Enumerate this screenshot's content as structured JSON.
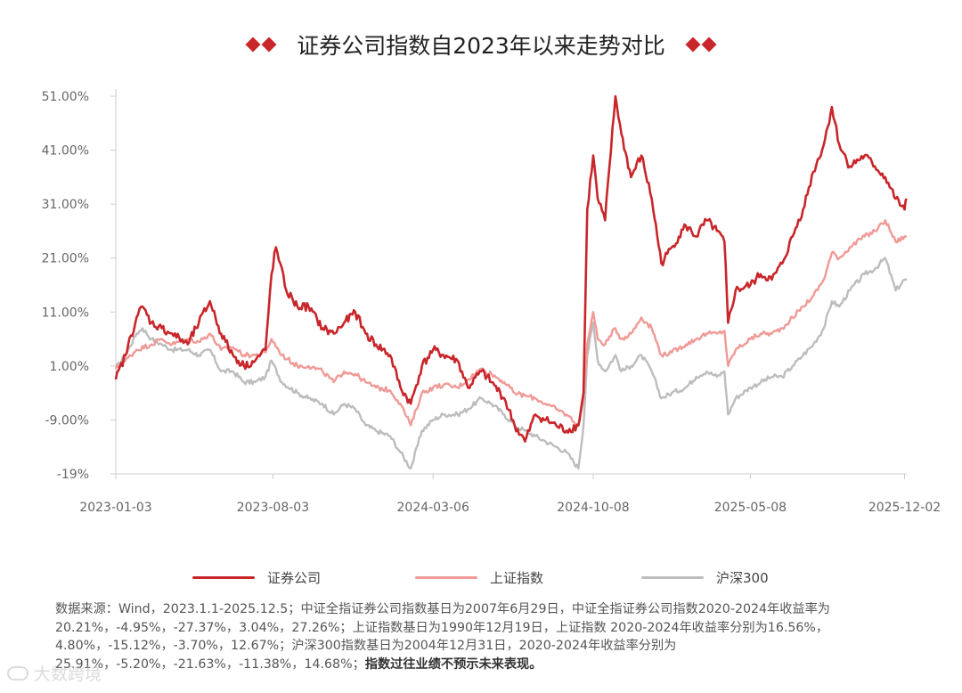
{
  "title": "证券公司指数自2023年以来走势对比",
  "colors": {
    "brokerage": "#c8262a",
    "shanghai": "#ef9a96",
    "csi300": "#bdbdbd",
    "diamond": "#c8262a"
  },
  "legend": {
    "brokerage": "证券公司",
    "shanghai": "上证指数",
    "csi300": "沪深300"
  },
  "note": {
    "text": "数据来源：Wind，2023.1.1-2025.12.5；中证全指证券公司指数基日为2007年6月29日，中证全指证券公司指数2020-2024年收益率为20.21%，-4.95%，-27.37%，3.04%，27.26%；上证指数基日为1990年12月19日，上证指数 2020-2024年收益率分别为16.56%，4.80%，-15.12%，-3.70%，12.67%；沪深300指数基日为2004年12月31日，2020-2024年收益率分别为25.91%，-5.20%，-21.63%，-11.38%，14.68%；",
    "bold": "指数过往业绩不预示未来表现。"
  },
  "watermark": "大数跨境",
  "chart_data": {
    "type": "line",
    "title": "证券公司指数自2023年以来走势对比",
    "xlabel": "",
    "ylabel": "",
    "x_ticks": [
      "2023-01-03",
      "2023-08-03",
      "2024-03-06",
      "2024-10-08",
      "2025-05-08",
      "2025-12-02"
    ],
    "y_ticks": [
      "51.00%",
      "41.00%",
      "31.00%",
      "21.00%",
      "11.00%",
      "1.00%",
      "-9.00%",
      "-19%"
    ],
    "ylim": [
      -19,
      51
    ],
    "xlim": [
      "2023-01-03",
      "2025-12-05"
    ],
    "grid": false,
    "legend_position": "bottom",
    "series": [
      {
        "key": "brokerage",
        "name": "证券公司",
        "points": [
          [
            "2023-01-03",
            -1.5
          ],
          [
            "2023-01-16",
            3
          ],
          [
            "2023-01-31",
            10
          ],
          [
            "2023-02-08",
            12
          ],
          [
            "2023-02-20",
            9
          ],
          [
            "2023-03-06",
            8
          ],
          [
            "2023-03-20",
            7
          ],
          [
            "2023-04-10",
            5
          ],
          [
            "2023-04-25",
            9
          ],
          [
            "2023-05-10",
            13
          ],
          [
            "2023-05-25",
            7
          ],
          [
            "2023-06-10",
            3
          ],
          [
            "2023-06-25",
            1
          ],
          [
            "2023-07-10",
            2
          ],
          [
            "2023-07-24",
            4
          ],
          [
            "2023-08-01",
            18
          ],
          [
            "2023-08-07",
            23
          ],
          [
            "2023-08-21",
            15
          ],
          [
            "2023-09-05",
            12
          ],
          [
            "2023-09-20",
            12
          ],
          [
            "2023-10-09",
            8
          ],
          [
            "2023-10-24",
            7
          ],
          [
            "2023-11-07",
            9
          ],
          [
            "2023-11-22",
            11
          ],
          [
            "2023-12-06",
            7
          ],
          [
            "2023-12-20",
            5
          ],
          [
            "2024-01-08",
            3
          ],
          [
            "2024-01-22",
            -3
          ],
          [
            "2024-02-05",
            -6
          ],
          [
            "2024-02-20",
            1
          ],
          [
            "2024-03-06",
            4
          ],
          [
            "2024-03-20",
            3
          ],
          [
            "2024-04-08",
            2
          ],
          [
            "2024-04-22",
            -3
          ],
          [
            "2024-05-10",
            0
          ],
          [
            "2024-05-24",
            -2
          ],
          [
            "2024-06-10",
            -5
          ],
          [
            "2024-06-24",
            -10
          ],
          [
            "2024-07-08",
            -13
          ],
          [
            "2024-07-22",
            -8
          ],
          [
            "2024-08-05",
            -9
          ],
          [
            "2024-08-19",
            -10
          ],
          [
            "2024-09-02",
            -11
          ],
          [
            "2024-09-18",
            -10
          ],
          [
            "2024-09-25",
            -4
          ],
          [
            "2024-09-30",
            30
          ],
          [
            "2024-10-08",
            40
          ],
          [
            "2024-10-14",
            32
          ],
          [
            "2024-10-24",
            28
          ],
          [
            "2024-11-07",
            51
          ],
          [
            "2024-11-15",
            44
          ],
          [
            "2024-11-28",
            36
          ],
          [
            "2024-12-12",
            40
          ],
          [
            "2024-12-26",
            32
          ],
          [
            "2025-01-08",
            20
          ],
          [
            "2025-01-22",
            23
          ],
          [
            "2025-02-10",
            27
          ],
          [
            "2025-02-24",
            25
          ],
          [
            "2025-03-10",
            28
          ],
          [
            "2025-03-24",
            26
          ],
          [
            "2025-04-03",
            24
          ],
          [
            "2025-04-08",
            9
          ],
          [
            "2025-04-18",
            15
          ],
          [
            "2025-05-08",
            16
          ],
          [
            "2025-05-22",
            18
          ],
          [
            "2025-06-06",
            17
          ],
          [
            "2025-06-20",
            20
          ],
          [
            "2025-07-04",
            25
          ],
          [
            "2025-07-18",
            30
          ],
          [
            "2025-08-01",
            37
          ],
          [
            "2025-08-15",
            42
          ],
          [
            "2025-08-26",
            49
          ],
          [
            "2025-09-05",
            42
          ],
          [
            "2025-09-19",
            38
          ],
          [
            "2025-10-09",
            40
          ],
          [
            "2025-10-23",
            38
          ],
          [
            "2025-11-06",
            36
          ],
          [
            "2025-11-20",
            32
          ],
          [
            "2025-12-02",
            30
          ],
          [
            "2025-12-05",
            32
          ]
        ]
      },
      {
        "key": "shanghai",
        "name": "上证指数",
        "points": [
          [
            "2023-01-03",
            0.5
          ],
          [
            "2023-01-16",
            2
          ],
          [
            "2023-01-31",
            4
          ],
          [
            "2023-02-20",
            5
          ],
          [
            "2023-03-06",
            6
          ],
          [
            "2023-03-20",
            5
          ],
          [
            "2023-04-10",
            6
          ],
          [
            "2023-04-25",
            5.5
          ],
          [
            "2023-05-10",
            7
          ],
          [
            "2023-05-25",
            4
          ],
          [
            "2023-06-10",
            4.5
          ],
          [
            "2023-06-25",
            3
          ],
          [
            "2023-07-10",
            3
          ],
          [
            "2023-07-24",
            3.5
          ],
          [
            "2023-08-01",
            6
          ],
          [
            "2023-08-15",
            3
          ],
          [
            "2023-09-05",
            1
          ],
          [
            "2023-09-20",
            1
          ],
          [
            "2023-10-09",
            0
          ],
          [
            "2023-10-24",
            -2
          ],
          [
            "2023-11-07",
            0
          ],
          [
            "2023-11-22",
            -0.5
          ],
          [
            "2023-12-06",
            -2
          ],
          [
            "2023-12-20",
            -3
          ],
          [
            "2024-01-08",
            -3.5
          ],
          [
            "2024-01-22",
            -6
          ],
          [
            "2024-02-05",
            -10
          ],
          [
            "2024-02-20",
            -4
          ],
          [
            "2024-03-06",
            -3
          ],
          [
            "2024-03-20",
            -2.5
          ],
          [
            "2024-04-08",
            -3
          ],
          [
            "2024-04-22",
            -1.5
          ],
          [
            "2024-05-10",
            0.5
          ],
          [
            "2024-05-24",
            -0.5
          ],
          [
            "2024-06-10",
            -2
          ],
          [
            "2024-06-24",
            -4
          ],
          [
            "2024-07-08",
            -4.5
          ],
          [
            "2024-07-22",
            -5
          ],
          [
            "2024-08-05",
            -6
          ],
          [
            "2024-08-19",
            -7
          ],
          [
            "2024-09-02",
            -8
          ],
          [
            "2024-09-18",
            -10
          ],
          [
            "2024-09-25",
            -5
          ],
          [
            "2024-09-30",
            5
          ],
          [
            "2024-10-08",
            11
          ],
          [
            "2024-10-14",
            6
          ],
          [
            "2024-10-24",
            5
          ],
          [
            "2024-11-07",
            8
          ],
          [
            "2024-11-15",
            6
          ],
          [
            "2024-11-28",
            7
          ],
          [
            "2024-12-12",
            10
          ],
          [
            "2024-12-26",
            8
          ],
          [
            "2025-01-08",
            3
          ],
          [
            "2025-01-22",
            3.5
          ],
          [
            "2025-02-10",
            5
          ],
          [
            "2025-02-24",
            6
          ],
          [
            "2025-03-10",
            7
          ],
          [
            "2025-03-24",
            7
          ],
          [
            "2025-04-03",
            7.5
          ],
          [
            "2025-04-08",
            1
          ],
          [
            "2025-04-18",
            4
          ],
          [
            "2025-05-08",
            6
          ],
          [
            "2025-05-22",
            7
          ],
          [
            "2025-06-06",
            7
          ],
          [
            "2025-06-20",
            8
          ],
          [
            "2025-07-04",
            10
          ],
          [
            "2025-07-18",
            12
          ],
          [
            "2025-08-01",
            14
          ],
          [
            "2025-08-15",
            17
          ],
          [
            "2025-08-26",
            22
          ],
          [
            "2025-09-05",
            21
          ],
          [
            "2025-09-19",
            23
          ],
          [
            "2025-10-09",
            25
          ],
          [
            "2025-10-23",
            26
          ],
          [
            "2025-11-06",
            28
          ],
          [
            "2025-11-20",
            24
          ],
          [
            "2025-12-02",
            25
          ],
          [
            "2025-12-05",
            25
          ]
        ]
      },
      {
        "key": "csi300",
        "name": "沪深300",
        "points": [
          [
            "2023-01-03",
            0.5
          ],
          [
            "2023-01-16",
            3
          ],
          [
            "2023-01-31",
            7
          ],
          [
            "2023-02-08",
            8
          ],
          [
            "2023-02-20",
            6
          ],
          [
            "2023-03-06",
            5
          ],
          [
            "2023-03-20",
            4
          ],
          [
            "2023-04-10",
            4
          ],
          [
            "2023-04-25",
            3
          ],
          [
            "2023-05-10",
            4
          ],
          [
            "2023-05-25",
            0
          ],
          [
            "2023-06-10",
            0
          ],
          [
            "2023-06-25",
            -2
          ],
          [
            "2023-07-10",
            -2
          ],
          [
            "2023-07-24",
            -1
          ],
          [
            "2023-08-01",
            2
          ],
          [
            "2023-08-15",
            -2
          ],
          [
            "2023-09-05",
            -4
          ],
          [
            "2023-09-20",
            -5
          ],
          [
            "2023-10-09",
            -6
          ],
          [
            "2023-10-24",
            -8
          ],
          [
            "2023-11-07",
            -6
          ],
          [
            "2023-11-22",
            -7
          ],
          [
            "2023-12-06",
            -10
          ],
          [
            "2023-12-20",
            -11
          ],
          [
            "2024-01-08",
            -12
          ],
          [
            "2024-01-22",
            -15
          ],
          [
            "2024-02-05",
            -18
          ],
          [
            "2024-02-20",
            -11
          ],
          [
            "2024-03-06",
            -9
          ],
          [
            "2024-03-20",
            -8
          ],
          [
            "2024-04-08",
            -8
          ],
          [
            "2024-04-22",
            -7
          ],
          [
            "2024-05-10",
            -5
          ],
          [
            "2024-05-24",
            -6
          ],
          [
            "2024-06-10",
            -8
          ],
          [
            "2024-06-24",
            -10
          ],
          [
            "2024-07-08",
            -11
          ],
          [
            "2024-07-22",
            -12
          ],
          [
            "2024-08-05",
            -13
          ],
          [
            "2024-08-19",
            -14
          ],
          [
            "2024-09-02",
            -15
          ],
          [
            "2024-09-18",
            -18
          ],
          [
            "2024-09-25",
            -10
          ],
          [
            "2024-09-30",
            3
          ],
          [
            "2024-10-08",
            9
          ],
          [
            "2024-10-14",
            2
          ],
          [
            "2024-10-24",
            0
          ],
          [
            "2024-11-07",
            3
          ],
          [
            "2024-11-15",
            0
          ],
          [
            "2024-11-28",
            1
          ],
          [
            "2024-12-12",
            3
          ],
          [
            "2024-12-26",
            0
          ],
          [
            "2025-01-08",
            -5
          ],
          [
            "2025-01-22",
            -4
          ],
          [
            "2025-02-10",
            -3
          ],
          [
            "2025-02-24",
            -1
          ],
          [
            "2025-03-10",
            0
          ],
          [
            "2025-03-24",
            -1
          ],
          [
            "2025-04-03",
            0
          ],
          [
            "2025-04-08",
            -8
          ],
          [
            "2025-04-18",
            -5
          ],
          [
            "2025-05-08",
            -3
          ],
          [
            "2025-05-22",
            -2
          ],
          [
            "2025-06-06",
            -1
          ],
          [
            "2025-06-20",
            -1
          ],
          [
            "2025-07-04",
            1
          ],
          [
            "2025-07-18",
            3
          ],
          [
            "2025-08-01",
            5
          ],
          [
            "2025-08-15",
            8
          ],
          [
            "2025-08-26",
            13
          ],
          [
            "2025-09-05",
            12
          ],
          [
            "2025-09-19",
            15
          ],
          [
            "2025-10-09",
            18
          ],
          [
            "2025-10-23",
            19
          ],
          [
            "2025-11-06",
            21
          ],
          [
            "2025-11-20",
            15
          ],
          [
            "2025-12-02",
            17
          ],
          [
            "2025-12-05",
            17
          ]
        ]
      }
    ]
  }
}
